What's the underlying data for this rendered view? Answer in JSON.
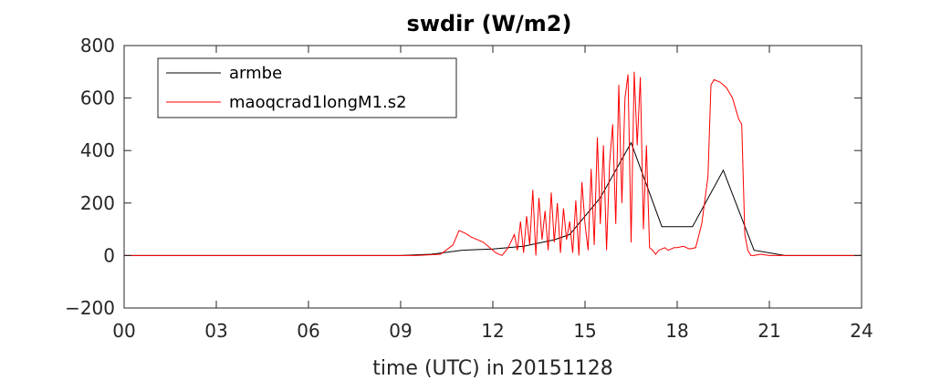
{
  "chart_data": {
    "type": "line",
    "title": "swdir  (W/m2)",
    "xlabel": "time (UTC) in 20151128",
    "ylabel": "",
    "xlim": [
      0,
      24
    ],
    "ylim": [
      -200,
      800
    ],
    "x_ticks": [
      0,
      3,
      6,
      9,
      12,
      15,
      18,
      21,
      24
    ],
    "x_tick_labels": [
      "00",
      "03",
      "06",
      "09",
      "12",
      "15",
      "18",
      "21",
      "24"
    ],
    "y_ticks": [
      -200,
      0,
      200,
      400,
      600,
      800
    ],
    "y_tick_labels": [
      "−200",
      "0",
      "200",
      "400",
      "600",
      "800"
    ],
    "grid": false,
    "legend_position": "top-left",
    "series": [
      {
        "name": "armbe",
        "color": "#000000",
        "x": [
          0,
          1,
          2,
          3,
          4,
          5,
          6,
          7,
          8,
          9,
          10,
          11,
          12,
          13,
          14,
          14.5,
          15.5,
          16.5,
          17.5,
          18.5,
          19.5,
          20.5,
          21.5,
          22.5,
          23.5,
          24
        ],
        "y": [
          0,
          0,
          0,
          0,
          0,
          0,
          0,
          0,
          0,
          0,
          5,
          20,
          25,
          35,
          60,
          80,
          220,
          430,
          110,
          110,
          325,
          20,
          0,
          0,
          0,
          0
        ]
      },
      {
        "name": "maoqcrad1longM1.s2",
        "color": "#ff0000",
        "x": [
          0,
          2,
          4,
          6,
          8,
          9.5,
          10.3,
          10.7,
          10.9,
          11.1,
          11.3,
          11.5,
          11.7,
          11.9,
          12.1,
          12.3,
          12.5,
          12.7,
          12.8,
          12.9,
          13.0,
          13.1,
          13.2,
          13.3,
          13.4,
          13.5,
          13.6,
          13.7,
          13.8,
          13.9,
          14.0,
          14.1,
          14.2,
          14.3,
          14.4,
          14.5,
          14.6,
          14.7,
          14.8,
          14.9,
          15.0,
          15.1,
          15.2,
          15.3,
          15.4,
          15.5,
          15.6,
          15.7,
          15.8,
          15.9,
          16.0,
          16.1,
          16.2,
          16.3,
          16.4,
          16.5,
          16.6,
          16.7,
          16.8,
          16.9,
          17.0,
          17.1,
          17.2,
          17.3,
          17.4,
          17.5,
          17.6,
          17.7,
          17.8,
          17.9,
          18.0,
          18.2,
          18.4,
          18.6,
          18.8,
          19.0,
          19.1,
          19.2,
          19.4,
          19.6,
          19.8,
          20.0,
          20.1,
          20.2,
          20.3,
          20.4,
          20.5,
          20.7,
          21.0,
          21.5,
          22,
          23,
          24
        ],
        "y": [
          0,
          0,
          0,
          0,
          0,
          0,
          5,
          40,
          95,
          85,
          70,
          60,
          50,
          30,
          10,
          0,
          30,
          80,
          20,
          130,
          10,
          150,
          40,
          250,
          0,
          220,
          60,
          170,
          20,
          240,
          50,
          200,
          10,
          180,
          60,
          130,
          10,
          210,
          0,
          280,
          120,
          20,
          330,
          40,
          450,
          120,
          420,
          20,
          350,
          500,
          120,
          650,
          200,
          600,
          690,
          50,
          700,
          420,
          680,
          100,
          420,
          30,
          20,
          5,
          20,
          25,
          30,
          20,
          25,
          30,
          30,
          35,
          25,
          30,
          120,
          300,
          650,
          670,
          660,
          640,
          600,
          520,
          500,
          80,
          20,
          0,
          0,
          5,
          0,
          0,
          0,
          0,
          0
        ]
      }
    ]
  }
}
